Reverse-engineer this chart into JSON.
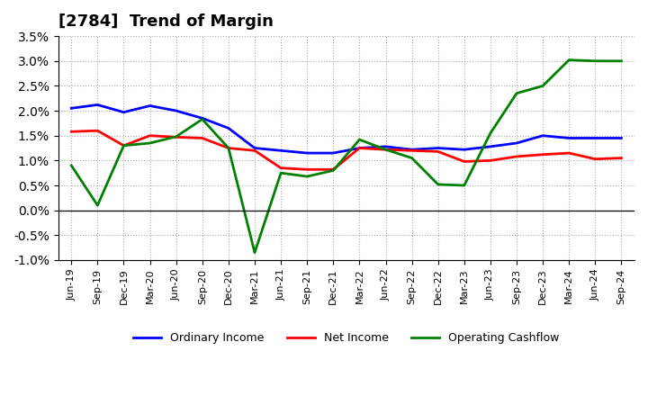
{
  "title": "[2784]  Trend of Margin",
  "x_labels": [
    "Jun-19",
    "Sep-19",
    "Dec-19",
    "Mar-20",
    "Jun-20",
    "Sep-20",
    "Dec-20",
    "Mar-21",
    "Jun-21",
    "Sep-21",
    "Dec-21",
    "Mar-22",
    "Jun-22",
    "Sep-22",
    "Dec-22",
    "Mar-23",
    "Jun-23",
    "Sep-23",
    "Dec-23",
    "Mar-24",
    "Jun-24",
    "Sep-24"
  ],
  "ordinary_income": [
    2.05,
    2.12,
    1.97,
    2.1,
    2.0,
    1.85,
    1.65,
    1.25,
    1.2,
    1.15,
    1.15,
    1.25,
    1.28,
    1.22,
    1.25,
    1.22,
    1.28,
    1.35,
    1.5,
    1.45,
    1.45,
    1.45
  ],
  "net_income": [
    1.58,
    1.6,
    1.3,
    1.5,
    1.47,
    1.45,
    1.25,
    1.2,
    0.85,
    0.82,
    0.82,
    1.25,
    1.22,
    1.2,
    1.18,
    0.98,
    1.0,
    1.08,
    1.12,
    1.15,
    1.03,
    1.05
  ],
  "operating_cashflow": [
    0.9,
    0.1,
    1.3,
    1.35,
    1.48,
    1.83,
    1.25,
    -0.85,
    0.75,
    0.68,
    0.8,
    1.42,
    1.22,
    1.05,
    0.52,
    0.5,
    1.55,
    2.35,
    2.5,
    3.02,
    3.0,
    3.0
  ],
  "ordinary_income_color": "#0000ff",
  "net_income_color": "#ff0000",
  "operating_cashflow_color": "#008000",
  "ylim": [
    -1.0,
    3.5
  ],
  "yticks": [
    -1.0,
    -0.5,
    0.0,
    0.5,
    1.0,
    1.5,
    2.0,
    2.5,
    3.0,
    3.5
  ],
  "background_color": "#ffffff",
  "grid_color": "#aaaaaa",
  "title_fontsize": 13,
  "legend_labels": [
    "Ordinary Income",
    "Net Income",
    "Operating Cashflow"
  ]
}
